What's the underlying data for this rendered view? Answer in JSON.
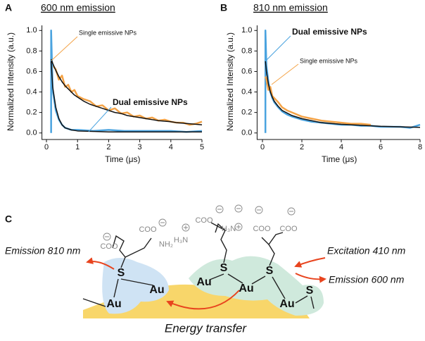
{
  "chart_data": [
    {
      "type": "line",
      "panel": "A",
      "title": "600 nm emission",
      "xlabel": "Time (μs)",
      "ylabel": "Normalized Intensity (a.u.)",
      "xlim": [
        -0.1,
        5
      ],
      "xticks": [
        0,
        1,
        2,
        3,
        4,
        5
      ],
      "ylim": [
        -0.05,
        1.05
      ],
      "yticks": [
        {
          "value": 0,
          "label": "0.0"
        },
        0.2,
        0.4,
        0.6,
        0.8,
        {
          "value": 1,
          "label": "1.0"
        }
      ],
      "series": [
        {
          "name": "Single emissive NPs",
          "color": "#f4a347",
          "x": [
            0.15,
            0.2,
            0.3,
            0.4,
            0.5,
            0.6,
            0.7,
            0.8,
            0.9,
            1.0,
            1.2,
            1.4,
            1.6,
            1.8,
            2.0,
            2.2,
            2.4,
            2.6,
            2.8,
            3.0,
            3.2,
            3.4,
            3.6,
            3.8,
            4.0,
            4.2,
            4.4,
            4.6,
            4.8,
            5.0
          ],
          "values": [
            0.74,
            0.66,
            0.62,
            0.52,
            0.56,
            0.45,
            0.47,
            0.4,
            0.42,
            0.36,
            0.33,
            0.31,
            0.26,
            0.27,
            0.22,
            0.24,
            0.19,
            0.2,
            0.16,
            0.17,
            0.14,
            0.15,
            0.12,
            0.13,
            0.11,
            0.1,
            0.1,
            0.08,
            0.09,
            0.11
          ]
        },
        {
          "name": "Dual emissive NPs",
          "color": "#4aa3df",
          "x": [
            0.15,
            0.15,
            0.2,
            0.3,
            0.4,
            0.5,
            0.6,
            0.8,
            1.0,
            1.5,
            2.0,
            2.5,
            3.0,
            3.5,
            4.0,
            4.5,
            5.0
          ],
          "values": [
            0,
            1.0,
            0.42,
            0.22,
            0.13,
            0.08,
            0.05,
            0.03,
            0.03,
            0.02,
            0.03,
            0.02,
            0.02,
            0.02,
            0.02,
            0.01,
            0.02
          ]
        },
        {
          "color": "#111111",
          "x": [
            0.15,
            0.2,
            0.3,
            0.4,
            0.5,
            0.6,
            0.7,
            0.8,
            0.9,
            1.0,
            1.2,
            1.4,
            1.6,
            1.8,
            2.0,
            2.2,
            2.4,
            2.6,
            2.8,
            3.0,
            3.2,
            3.4,
            3.6,
            3.8,
            4.0,
            4.2,
            4.4,
            4.6,
            4.8,
            5.0
          ],
          "values": [
            0.72,
            0.68,
            0.61,
            0.55,
            0.5,
            0.46,
            0.43,
            0.4,
            0.37,
            0.35,
            0.31,
            0.28,
            0.26,
            0.24,
            0.22,
            0.2,
            0.19,
            0.17,
            0.16,
            0.15,
            0.14,
            0.13,
            0.12,
            0.115,
            0.11,
            0.1,
            0.095,
            0.09,
            0.085,
            0.08
          ]
        },
        {
          "color": "#111111",
          "x": [
            0.15,
            0.2,
            0.3,
            0.4,
            0.5,
            0.6,
            0.8,
            1.0,
            1.5,
            2.0,
            3.0,
            4.0,
            5.0
          ],
          "values": [
            0.7,
            0.45,
            0.25,
            0.14,
            0.08,
            0.05,
            0.03,
            0.02,
            0.015,
            0.01,
            0.01,
            0.01,
            0.01
          ]
        }
      ]
    },
    {
      "type": "line",
      "panel": "B",
      "title": "810 nm emission",
      "xlabel": "Time (μs)",
      "ylabel": "Normalized Intensity (a.u.)",
      "xlim": [
        -0.2,
        8
      ],
      "xticks": [
        0,
        2,
        4,
        6,
        8
      ],
      "ylim": [
        -0.05,
        1.05
      ],
      "yticks": [
        {
          "value": 0,
          "label": "0.0"
        },
        0.2,
        0.4,
        0.6,
        0.8,
        {
          "value": 1,
          "label": "1.0"
        }
      ],
      "series": [
        {
          "name": "Dual emissive NPs",
          "color": "#4aa3df",
          "x": [
            0.15,
            0.15,
            0.2,
            0.3,
            0.4,
            0.5,
            0.6,
            0.8,
            1.0,
            1.25,
            1.5,
            2,
            2.5,
            3,
            3.5,
            4,
            4.5,
            5,
            5.5,
            6,
            6.5,
            7,
            7.5,
            8
          ],
          "values": [
            0,
            1.0,
            0.66,
            0.5,
            0.4,
            0.34,
            0.3,
            0.25,
            0.21,
            0.18,
            0.16,
            0.13,
            0.11,
            0.1,
            0.09,
            0.08,
            0.08,
            0.07,
            0.07,
            0.06,
            0.06,
            0.06,
            0.05,
            0.08
          ]
        },
        {
          "name": "Single emissive NPs",
          "color": "#f4a347",
          "x": [
            0.15,
            0.2,
            0.3,
            0.4,
            0.5,
            0.6,
            0.8,
            1.0,
            1.25,
            1.5,
            2,
            2.5,
            3,
            3.5,
            4,
            4.5,
            5,
            5.5
          ],
          "values": [
            0.55,
            0.52,
            0.42,
            0.45,
            0.36,
            0.34,
            0.3,
            0.25,
            0.22,
            0.2,
            0.16,
            0.14,
            0.12,
            0.11,
            0.1,
            0.09,
            0.09,
            0.08
          ]
        },
        {
          "color": "#111111",
          "x": [
            0.15,
            0.2,
            0.3,
            0.4,
            0.5,
            0.6,
            0.8,
            1.0,
            1.5,
            2,
            3,
            4,
            5,
            6,
            7,
            8
          ],
          "values": [
            0.7,
            0.6,
            0.48,
            0.4,
            0.35,
            0.31,
            0.26,
            0.22,
            0.17,
            0.14,
            0.1,
            0.085,
            0.075,
            0.065,
            0.06,
            0.055
          ]
        }
      ]
    }
  ],
  "panel_c": {
    "label": "C",
    "emission_810": "Emission 810 nm",
    "excitation": "Excitation 410 nm",
    "emission_600": "Emission 600 nm",
    "energy_transfer": "Energy transfer",
    "atoms": [
      "S",
      "Au",
      "Au",
      "S",
      "S",
      "Au",
      "Au",
      "Au",
      "S"
    ],
    "groups": [
      "COO",
      "COO",
      "NH₂",
      "H₃N",
      "COO",
      "H₃N",
      "COO",
      "COO"
    ]
  }
}
